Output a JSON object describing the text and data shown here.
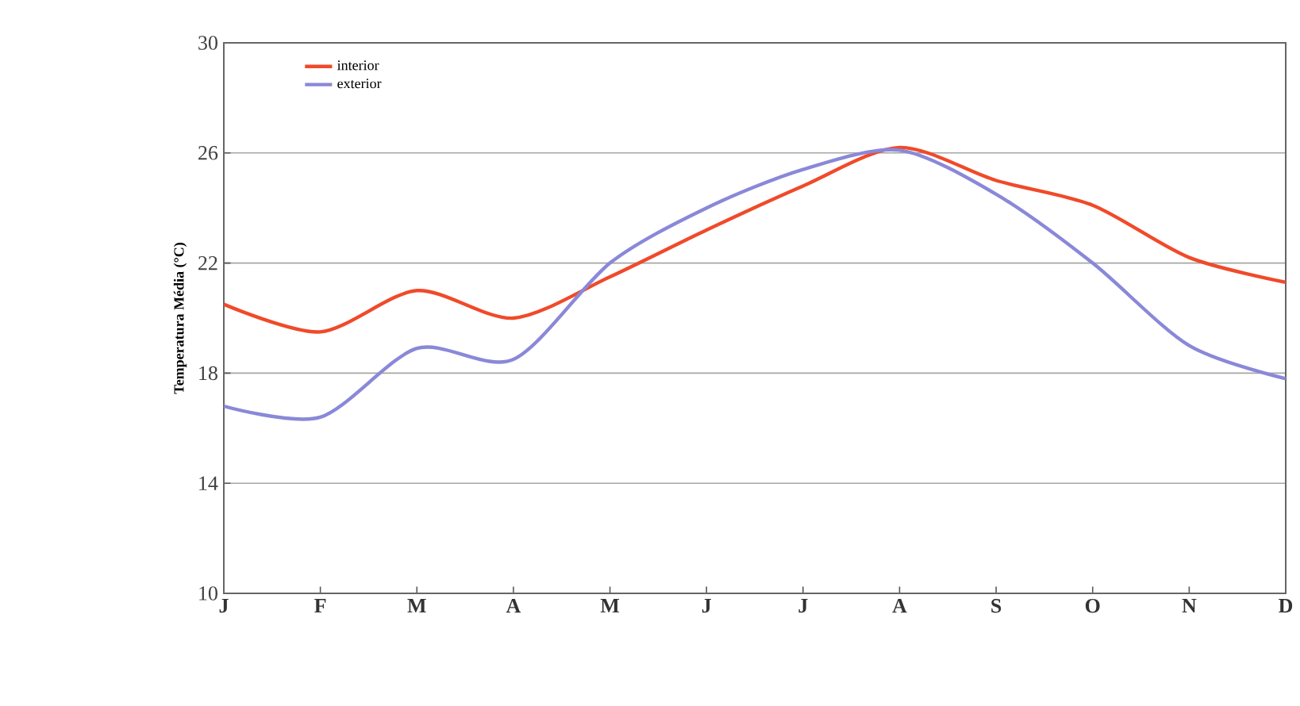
{
  "chart_data": {
    "type": "line",
    "ylabel": "Temperatura Média (°C)",
    "categories": [
      "J",
      "F",
      "M",
      "A",
      "M",
      "J",
      "J",
      "A",
      "S",
      "O",
      "N",
      "D"
    ],
    "series": [
      {
        "name": "interior",
        "color": "#f04a2a",
        "values": [
          20.5,
          19.5,
          21.0,
          20.0,
          21.5,
          23.2,
          24.8,
          26.2,
          25.0,
          24.1,
          22.2,
          21.3
        ]
      },
      {
        "name": "exterior",
        "color": "#8a88d8",
        "values": [
          16.8,
          16.4,
          18.9,
          18.5,
          22.0,
          24.0,
          25.4,
          26.1,
          24.5,
          22.0,
          19.0,
          17.8
        ]
      }
    ],
    "ylim": [
      10,
      30
    ],
    "yticks": [
      10,
      14,
      18,
      22,
      26,
      30
    ],
    "grid": "y",
    "legend": "top left",
    "marker": "none",
    "line_style": "solid"
  }
}
